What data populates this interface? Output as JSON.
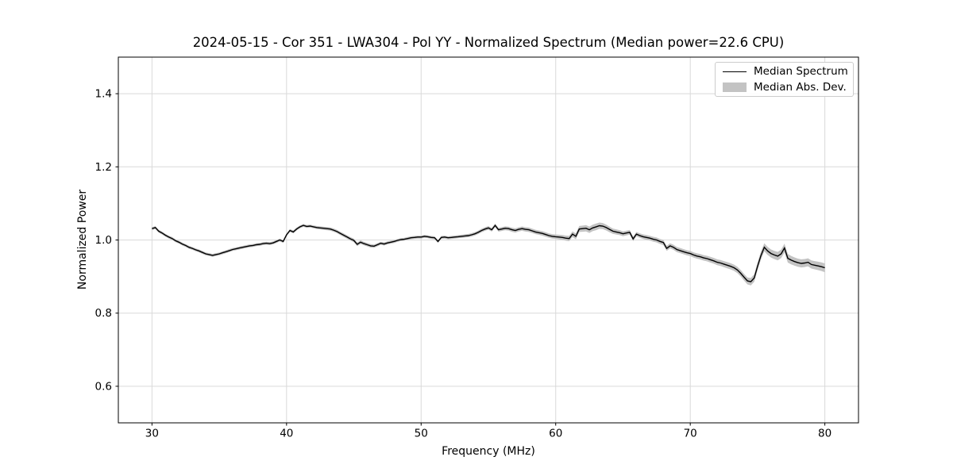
{
  "figure": {
    "background": "#ffffff"
  },
  "colors": {
    "line": "#000000",
    "band": "#c3c3c3",
    "grid": "#d9d9d9",
    "spine": "#000000",
    "tick": "#000000",
    "text": "#000000",
    "legend_border": "#cccccc"
  },
  "chart_data": {
    "type": "line",
    "title": "2024-05-15 - Cor 351 - LWA304 - Pol YY - Normalized Spectrum (Median power=22.6 CPU)",
    "xlabel": "Frequency (MHz)",
    "ylabel": "Normalized Power",
    "xlim": [
      27.5,
      82.5
    ],
    "ylim": [
      0.5,
      1.5
    ],
    "xticks": [
      30,
      40,
      50,
      60,
      70,
      80
    ],
    "xtick_labels": [
      "30",
      "40",
      "50",
      "60",
      "70",
      "80"
    ],
    "yticks": [
      0.6,
      0.8,
      1.0,
      1.2,
      1.4
    ],
    "ytick_labels": [
      "0.6",
      "0.8",
      "1.0",
      "1.2",
      "1.4"
    ],
    "grid": true,
    "legend": {
      "position": "upper right",
      "entries": [
        {
          "label": "Median Spectrum",
          "type": "line",
          "color": "#000000"
        },
        {
          "label": "Median Abs. Dev.",
          "type": "patch",
          "color": "#c3c3c3"
        }
      ]
    },
    "series": [
      {
        "name": "Median Spectrum",
        "x": [
          30,
          30.25,
          30.5,
          30.75,
          31,
          31.25,
          31.5,
          31.75,
          32,
          32.25,
          32.5,
          32.75,
          33,
          33.25,
          33.5,
          33.75,
          34,
          34.25,
          34.5,
          34.75,
          35,
          35.25,
          35.5,
          35.75,
          36,
          36.25,
          36.5,
          36.75,
          37,
          37.25,
          37.5,
          37.75,
          38,
          38.25,
          38.5,
          38.75,
          39,
          39.25,
          39.5,
          39.75,
          40,
          40.25,
          40.5,
          40.75,
          41,
          41.25,
          41.5,
          41.75,
          42,
          42.25,
          42.5,
          42.75,
          43,
          43.25,
          43.5,
          43.75,
          44,
          44.25,
          44.5,
          44.75,
          45,
          45.25,
          45.5,
          45.75,
          46,
          46.25,
          46.5,
          46.75,
          47,
          47.25,
          47.5,
          47.75,
          48,
          48.25,
          48.5,
          48.75,
          49,
          49.25,
          49.5,
          49.75,
          50,
          50.25,
          50.5,
          50.75,
          51,
          51.25,
          51.5,
          51.75,
          52,
          52.25,
          52.5,
          52.75,
          53,
          53.25,
          53.5,
          53.75,
          54,
          54.25,
          54.5,
          54.75,
          55,
          55.25,
          55.5,
          55.75,
          56,
          56.25,
          56.5,
          56.75,
          57,
          57.25,
          57.5,
          57.75,
          58,
          58.25,
          58.5,
          58.75,
          59,
          59.25,
          59.5,
          59.75,
          60,
          60.25,
          60.5,
          60.75,
          61,
          61.25,
          61.5,
          61.75,
          62,
          62.25,
          62.5,
          62.75,
          63,
          63.25,
          63.5,
          63.75,
          64,
          64.25,
          64.5,
          64.75,
          65,
          65.25,
          65.5,
          65.75,
          66,
          66.25,
          66.5,
          66.75,
          67,
          67.25,
          67.5,
          67.75,
          68,
          68.25,
          68.5,
          68.75,
          69,
          69.25,
          69.5,
          69.75,
          70,
          70.25,
          70.5,
          70.75,
          71,
          71.25,
          71.5,
          71.75,
          72,
          72.25,
          72.5,
          72.75,
          73,
          73.25,
          73.5,
          73.75,
          74,
          74.25,
          74.5,
          74.75,
          75,
          75.25,
          75.5,
          75.75,
          76,
          76.25,
          76.5,
          76.75,
          77,
          77.25,
          77.5,
          77.75,
          78,
          78.25,
          78.5,
          78.75,
          79,
          79.25,
          79.5,
          79.75,
          80
        ],
        "y": [
          1.031,
          1.034,
          1.024,
          1.019,
          1.013,
          1.008,
          1.004,
          0.998,
          0.994,
          0.989,
          0.985,
          0.98,
          0.977,
          0.973,
          0.97,
          0.966,
          0.962,
          0.96,
          0.958,
          0.96,
          0.962,
          0.965,
          0.968,
          0.971,
          0.974,
          0.976,
          0.978,
          0.98,
          0.982,
          0.984,
          0.985,
          0.987,
          0.988,
          0.99,
          0.991,
          0.99,
          0.992,
          0.996,
          1.0,
          0.996,
          1.014,
          1.026,
          1.022,
          1.03,
          1.036,
          1.04,
          1.037,
          1.038,
          1.036,
          1.034,
          1.033,
          1.032,
          1.031,
          1.03,
          1.027,
          1.023,
          1.018,
          1.013,
          1.008,
          1.003,
          0.999,
          0.988,
          0.994,
          0.99,
          0.987,
          0.984,
          0.983,
          0.987,
          0.991,
          0.989,
          0.992,
          0.994,
          0.996,
          0.999,
          1.001,
          1.002,
          1.004,
          1.006,
          1.007,
          1.008,
          1.008,
          1.01,
          1.009,
          1.007,
          1.006,
          0.996,
          1.007,
          1.008,
          1.006,
          1.007,
          1.008,
          1.009,
          1.01,
          1.011,
          1.012,
          1.014,
          1.017,
          1.021,
          1.026,
          1.03,
          1.033,
          1.028,
          1.04,
          1.028,
          1.03,
          1.032,
          1.031,
          1.028,
          1.026,
          1.029,
          1.031,
          1.029,
          1.028,
          1.025,
          1.022,
          1.02,
          1.018,
          1.015,
          1.012,
          1.01,
          1.009,
          1.008,
          1.007,
          1.005,
          1.004,
          1.016,
          1.01,
          1.03,
          1.031,
          1.032,
          1.028,
          1.033,
          1.036,
          1.039,
          1.038,
          1.034,
          1.029,
          1.024,
          1.022,
          1.02,
          1.017,
          1.019,
          1.021,
          1.003,
          1.016,
          1.012,
          1.009,
          1.007,
          1.005,
          1.002,
          1.0,
          0.996,
          0.993,
          0.977,
          0.984,
          0.98,
          0.974,
          0.971,
          0.968,
          0.965,
          0.963,
          0.959,
          0.956,
          0.954,
          0.951,
          0.949,
          0.946,
          0.943,
          0.939,
          0.937,
          0.934,
          0.931,
          0.928,
          0.924,
          0.918,
          0.909,
          0.898,
          0.888,
          0.886,
          0.896,
          0.928,
          0.957,
          0.98,
          0.97,
          0.963,
          0.959,
          0.956,
          0.962,
          0.978,
          0.95,
          0.945,
          0.941,
          0.938,
          0.936,
          0.937,
          0.939,
          0.933,
          0.931,
          0.929,
          0.927,
          0.924
        ]
      },
      {
        "name": "Median Abs. Dev.",
        "band_halfwidth": {
          "x": [
            30,
            34,
            38,
            42,
            45,
            48,
            52,
            55,
            58,
            60,
            61.5,
            63,
            64.5,
            66,
            68,
            70,
            72,
            74,
            75,
            76,
            77,
            78,
            79,
            80
          ],
          "hw": [
            0.004,
            0.004,
            0.004,
            0.004,
            0.005,
            0.004,
            0.004,
            0.005,
            0.006,
            0.006,
            0.008,
            0.009,
            0.007,
            0.006,
            0.007,
            0.007,
            0.008,
            0.009,
            0.011,
            0.011,
            0.012,
            0.011,
            0.011,
            0.012
          ]
        }
      }
    ]
  }
}
